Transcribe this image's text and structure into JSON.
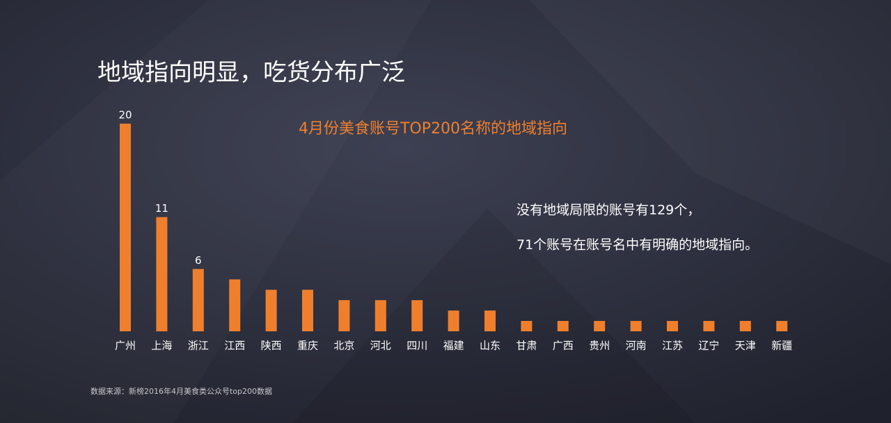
{
  "page_title": "地域指向明显，吃货分布广泛",
  "chart_data": {
    "type": "bar",
    "title": "4月份美食账号TOP200名称的地域指向",
    "categories": [
      "广州",
      "上海",
      "浙江",
      "江西",
      "陕西",
      "重庆",
      "北京",
      "河北",
      "四川",
      "福建",
      "山东",
      "甘肃",
      "广西",
      "贵州",
      "河南",
      "江苏",
      "辽宁",
      "天津",
      "新疆"
    ],
    "values": [
      20,
      11,
      6,
      5,
      4,
      4,
      3,
      3,
      3,
      2,
      2,
      1,
      1,
      1,
      1,
      1,
      1,
      1,
      1
    ],
    "value_labels": [
      "20",
      "11",
      "6",
      null,
      null,
      null,
      null,
      null,
      null,
      null,
      null,
      null,
      null,
      null,
      null,
      null,
      null,
      null,
      null
    ],
    "color": "#ef7f2d",
    "ylim": [
      0,
      20
    ],
    "annotations": [
      "没有地域局限的账号有129个，",
      "71个账号在账号名中有明确的地域指向。"
    ],
    "source": "数据来源：新榜2016年4月美食类公众号top200数据"
  }
}
